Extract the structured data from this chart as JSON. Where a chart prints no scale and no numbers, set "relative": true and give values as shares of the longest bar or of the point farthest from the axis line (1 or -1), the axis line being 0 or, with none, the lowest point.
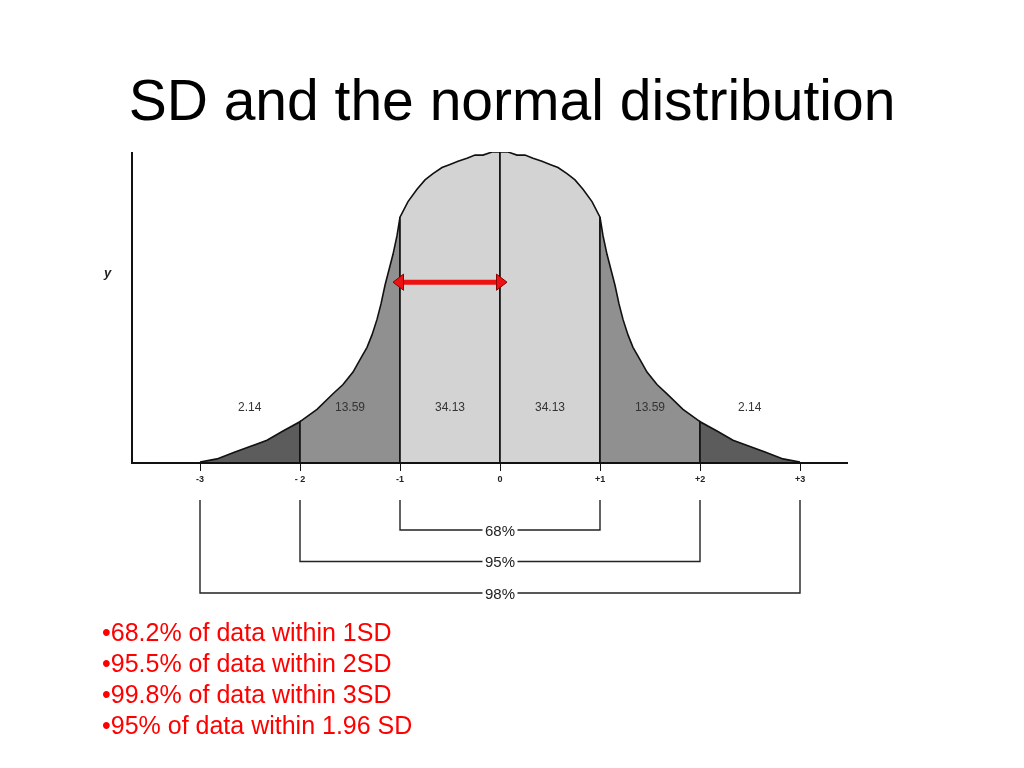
{
  "chart_data": {
    "type": "area",
    "title": "SD and the normal distribution",
    "ylabel": "y",
    "relative": true,
    "xlim": [
      -3.67,
      3.48
    ],
    "xticks": [
      -3,
      {
        "value": -2,
        "label": "- 2"
      },
      -1,
      0,
      {
        "value": 1,
        "label": "+1"
      },
      {
        "value": 2,
        "label": "+2"
      },
      {
        "value": 3,
        "label": "+3"
      }
    ],
    "series": [
      {
        "color": "#5c5c5c",
        "x": [
          -3,
          -2.83,
          -2.67,
          -2.5,
          -2.33,
          -2.17,
          -2
        ],
        "values": [
          0,
          0.01,
          0.03,
          0.05,
          0.07,
          0.1,
          0.13
        ]
      },
      {
        "color": "#909090",
        "x": [
          -2,
          -1.83,
          -1.67,
          -1.57,
          -1.47,
          -1.4,
          -1.33,
          -1.28,
          -1.23,
          -1.19,
          -1.15,
          -1.11,
          -1.07,
          -1.03,
          -1
        ],
        "values": [
          0.13,
          0.17,
          0.22,
          0.25,
          0.29,
          0.33,
          0.37,
          0.41,
          0.46,
          0.51,
          0.57,
          0.62,
          0.67,
          0.73,
          0.79
        ]
      },
      {
        "color": "#d3d3d3",
        "x": [
          -1,
          -0.92,
          -0.83,
          -0.75,
          -0.67,
          -0.58,
          -0.5,
          -0.42,
          -0.33,
          -0.25,
          -0.17,
          -0.08,
          0
        ],
        "values": [
          0.79,
          0.84,
          0.88,
          0.91,
          0.93,
          0.95,
          0.96,
          0.97,
          0.98,
          0.99,
          0.99,
          1.0,
          1.0
        ]
      },
      {
        "color": "#d3d3d3",
        "x": [
          0,
          0.08,
          0.17,
          0.25,
          0.33,
          0.42,
          0.5,
          0.58,
          0.67,
          0.75,
          0.83,
          0.92,
          1
        ],
        "values": [
          1.0,
          1.0,
          0.99,
          0.99,
          0.98,
          0.97,
          0.96,
          0.95,
          0.93,
          0.91,
          0.88,
          0.84,
          0.79
        ]
      },
      {
        "color": "#909090",
        "x": [
          1,
          1.03,
          1.07,
          1.11,
          1.15,
          1.19,
          1.23,
          1.28,
          1.33,
          1.4,
          1.47,
          1.57,
          1.67,
          1.83,
          2
        ],
        "values": [
          0.79,
          0.73,
          0.67,
          0.62,
          0.57,
          0.51,
          0.46,
          0.41,
          0.37,
          0.33,
          0.29,
          0.25,
          0.22,
          0.17,
          0.13
        ]
      },
      {
        "color": "#5c5c5c",
        "x": [
          2,
          2.17,
          2.33,
          2.5,
          2.67,
          2.83,
          3
        ],
        "values": [
          0.13,
          0.1,
          0.07,
          0.05,
          0.03,
          0.01,
          0
        ]
      },
      {
        "type": "line",
        "color": "#ee1111",
        "marker": "triangle",
        "x": [
          -1,
          0
        ],
        "values": [
          0.58,
          0.58
        ]
      }
    ],
    "annotations": [
      "2.14",
      "13.59",
      "34.13",
      "34.13",
      "13.59",
      "2.14",
      "68%",
      "95%",
      "98%",
      "•68.2% of data within 1SD",
      "•95.5% of data within 2SD",
      "•99.8% of data within 3SD",
      "•95% of data within 1.96 SD"
    ]
  }
}
